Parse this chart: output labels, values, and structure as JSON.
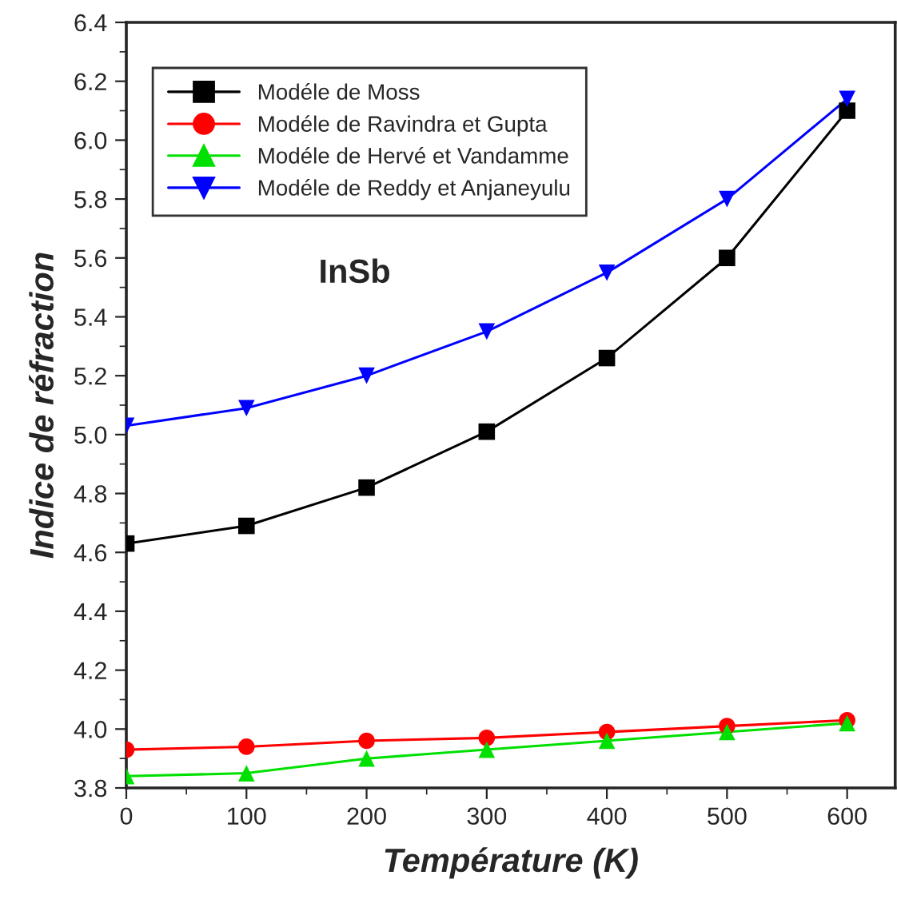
{
  "chart_data": {
    "type": "line",
    "xlabel": "Température (K)",
    "ylabel": "Indice de réfraction",
    "annotations": [
      "InSb"
    ],
    "x": [
      0,
      100,
      200,
      300,
      400,
      500,
      600
    ],
    "series": [
      {
        "name": "Modéle de Moss",
        "color": "#000000",
        "marker": "square",
        "values": [
          4.63,
          4.69,
          4.82,
          5.01,
          5.26,
          5.6,
          6.1
        ]
      },
      {
        "name": "Modéle de Ravindra et Gupta",
        "color": "#ff0000",
        "marker": "circle",
        "values": [
          3.93,
          3.94,
          3.96,
          3.97,
          3.99,
          4.01,
          4.03
        ]
      },
      {
        "name": "Modéle de Hervé et Vandamme",
        "color": "#00e000",
        "marker": "triangle",
        "values": [
          3.84,
          3.85,
          3.9,
          3.93,
          3.96,
          3.99,
          4.02
        ]
      },
      {
        "name": "Modéle de Reddy et Anjaneyulu",
        "color": "#0000ff",
        "marker": "triangle_down",
        "values": [
          5.03,
          5.09,
          5.2,
          5.35,
          5.55,
          5.8,
          6.14
        ]
      }
    ],
    "xlim": [
      0,
      640
    ],
    "xticks": [
      0,
      100,
      200,
      300,
      400,
      500,
      600
    ],
    "ylim": [
      3.8,
      6.4
    ],
    "yticks": [
      {
        "value": 3.8,
        "label": "3.8"
      },
      {
        "value": 4.0,
        "label": "4.0"
      },
      {
        "value": 4.2,
        "label": "4.2"
      },
      {
        "value": 4.4,
        "label": "4.4"
      },
      {
        "value": 4.6,
        "label": "4.6"
      },
      {
        "value": 4.8,
        "label": "4.8"
      },
      {
        "value": 5.0,
        "label": "5.0"
      },
      {
        "value": 5.2,
        "label": "5.2"
      },
      {
        "value": 5.4,
        "label": "5.4"
      },
      {
        "value": 5.6,
        "label": "5.6"
      },
      {
        "value": 5.8,
        "label": "5.8"
      },
      {
        "value": 6.0,
        "label": "6.0"
      },
      {
        "value": 6.2,
        "label": "6.2"
      },
      {
        "value": 6.4,
        "label": "6.4"
      }
    ],
    "grid": false,
    "legend": "top left",
    "line_style": "solid"
  }
}
